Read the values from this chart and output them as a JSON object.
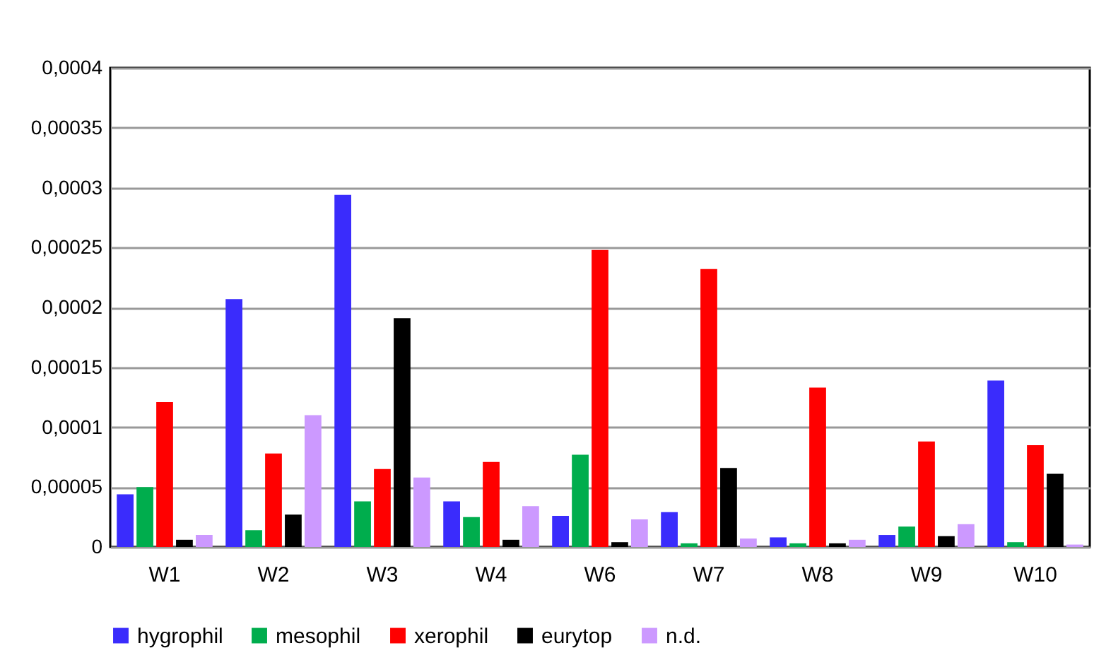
{
  "chart_data": {
    "type": "bar",
    "categories": [
      "W1",
      "W2",
      "W3",
      "W4",
      "W6",
      "W7",
      "W8",
      "W9",
      "W10"
    ],
    "series": [
      {
        "name": "hygrophil",
        "color": "#3a2cfc",
        "values": [
          4.4e-05,
          0.000207,
          0.000294,
          3.8e-05,
          2.6e-05,
          2.9e-05,
          8e-06,
          1e-05,
          0.000139
        ]
      },
      {
        "name": "mesophil",
        "color": "#00ad4d",
        "values": [
          5e-05,
          1.4e-05,
          3.8e-05,
          2.5e-05,
          7.7e-05,
          3e-06,
          3e-06,
          1.7e-05,
          4e-06
        ]
      },
      {
        "name": "xerophil",
        "color": "#ff0000",
        "values": [
          0.000121,
          7.8e-05,
          6.5e-05,
          7.1e-05,
          0.000248,
          0.000232,
          0.000133,
          8.8e-05,
          8.5e-05
        ]
      },
      {
        "name": "eurytop",
        "color": "#000000",
        "values": [
          6e-06,
          2.7e-05,
          0.000191,
          6e-06,
          4e-06,
          6.6e-05,
          3e-06,
          9e-06,
          6.1e-05
        ]
      },
      {
        "name": "n.d.",
        "color": "#cc99ff",
        "values": [
          1e-05,
          0.00011,
          5.8e-05,
          3.4e-05,
          2.3e-05,
          7e-06,
          6e-06,
          1.9e-05,
          2e-06
        ]
      }
    ],
    "ylim": [
      0,
      0.0004
    ],
    "yticks": [
      0,
      {
        "value": 5e-05,
        "label": "0,00005"
      },
      {
        "value": 0.0001,
        "label": "0,0001"
      },
      {
        "value": 0.00015,
        "label": "0,00015"
      },
      {
        "value": 0.0002,
        "label": "0,0002"
      },
      {
        "value": 0.00025,
        "label": "0,00025"
      },
      {
        "value": 0.0003,
        "label": "0,0003"
      },
      {
        "value": 0.00035,
        "label": "0,00035"
      },
      {
        "value": 0.0004,
        "label": "0,0004"
      }
    ],
    "grid": "y",
    "legend": "bottom"
  }
}
